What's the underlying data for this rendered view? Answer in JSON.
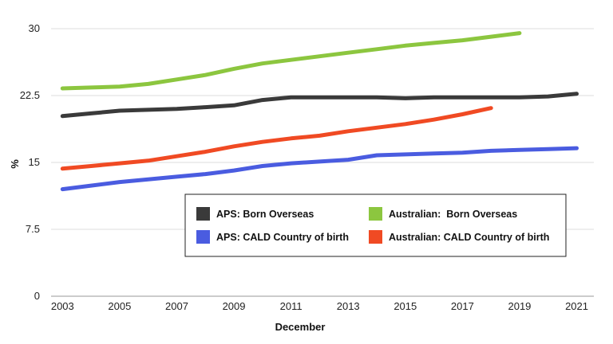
{
  "chart_data": {
    "type": "line",
    "xlabel": "December",
    "ylabel": "%",
    "x": [
      2003,
      2004,
      2005,
      2006,
      2007,
      2008,
      2009,
      2010,
      2011,
      2012,
      2013,
      2014,
      2015,
      2016,
      2017,
      2018,
      2019,
      2020,
      2021
    ],
    "x_ticks": [
      "2003",
      "2005",
      "2007",
      "2009",
      "2011",
      "2013",
      "2015",
      "2017",
      "2019",
      "2021"
    ],
    "y_ticks": [
      "0",
      "7.5",
      "15",
      "22.5",
      "30"
    ],
    "xlim": [
      2002.6,
      2021.6
    ],
    "ylim": [
      0,
      30
    ],
    "grid": "horizontal",
    "legend_position": "bottom-center",
    "series": [
      {
        "name": "APS: Born Overseas",
        "color": "#3a3a3a",
        "values": [
          20.2,
          20.5,
          20.8,
          20.9,
          21.0,
          21.2,
          21.4,
          22.0,
          22.3,
          22.3,
          22.3,
          22.3,
          22.2,
          22.3,
          22.3,
          22.3,
          22.3,
          22.4,
          22.7
        ]
      },
      {
        "name": "Australian:  Born Overseas",
        "color": "#8cc63f",
        "values": [
          23.3,
          23.4,
          23.5,
          23.8,
          24.3,
          24.8,
          25.5,
          26.1,
          26.5,
          26.9,
          27.3,
          27.7,
          28.1,
          28.4,
          28.7,
          29.1,
          29.5,
          null,
          null
        ]
      },
      {
        "name": "APS: CALD Country of birth",
        "color": "#4a5ce0",
        "values": [
          12.0,
          12.4,
          12.8,
          13.1,
          13.4,
          13.7,
          14.1,
          14.6,
          14.9,
          15.1,
          15.3,
          15.8,
          15.9,
          16.0,
          16.1,
          16.3,
          16.4,
          16.5,
          16.6
        ]
      },
      {
        "name": "Australian: CALD Country of birth",
        "color": "#f04a23",
        "values": [
          14.3,
          14.6,
          14.9,
          15.2,
          15.7,
          16.2,
          16.8,
          17.3,
          17.7,
          18.0,
          18.5,
          18.9,
          19.3,
          19.8,
          20.4,
          21.1,
          null,
          null,
          null
        ]
      }
    ]
  }
}
